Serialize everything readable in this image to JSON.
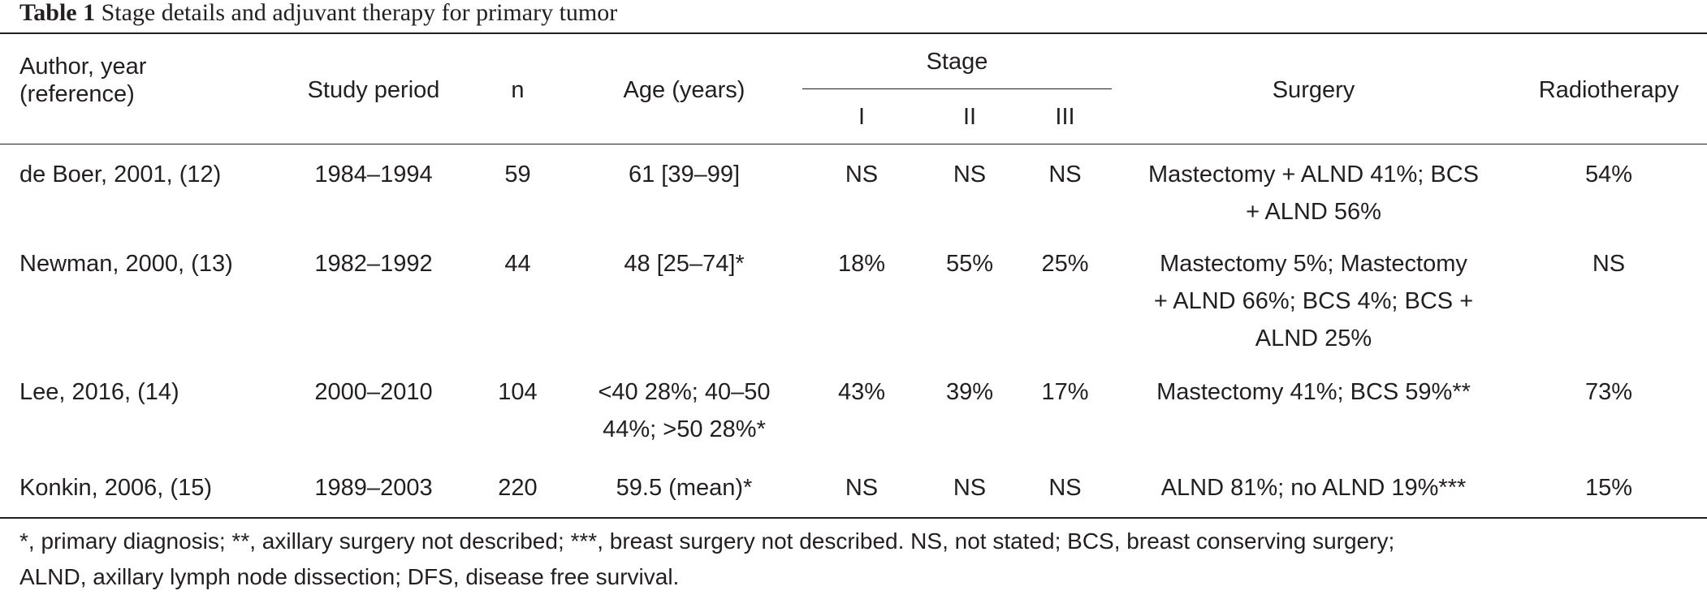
{
  "caption": {
    "label": "Table 1",
    "title": "Stage details and adjuvant therapy for primary tumor"
  },
  "header": {
    "author_line1": "Author, year",
    "author_line2": "(reference)",
    "study_period": "Study period",
    "n": "n",
    "age": "Age (years)",
    "stage": "Stage",
    "stage_1": "I",
    "stage_2": "II",
    "stage_3": "III",
    "surgery": "Surgery",
    "radiotherapy": "Radiotherapy"
  },
  "rows": [
    {
      "author": "de Boer, 2001, (12)",
      "period": "1984–1994",
      "n": "59",
      "age_lines": [
        "61 [39–99]"
      ],
      "s1": "NS",
      "s2": "NS",
      "s3": "NS",
      "surgery_lines": [
        "Mastectomy + ALND 41%; BCS",
        "+ ALND 56%"
      ],
      "radiotherapy": "54%"
    },
    {
      "author": "Newman, 2000, (13)",
      "period": "1982–1992",
      "n": "44",
      "age_lines": [
        "48 [25–74]*"
      ],
      "s1": "18%",
      "s2": "55%",
      "s3": "25%",
      "surgery_lines": [
        "Mastectomy 5%; Mastectomy",
        "+ ALND 66%; BCS 4%; BCS +",
        "ALND 25%"
      ],
      "radiotherapy": "NS"
    },
    {
      "author": "Lee, 2016, (14)",
      "period": "2000–2010",
      "n": "104",
      "age_lines": [
        "<40 28%; 40–50",
        "44%; >50 28%*"
      ],
      "s1": "43%",
      "s2": "39%",
      "s3": "17%",
      "surgery_lines": [
        "Mastectomy 41%; BCS 59%**"
      ],
      "radiotherapy": "73%"
    },
    {
      "author": "Konkin, 2006, (15)",
      "period": "1989–2003",
      "n": "220",
      "age_lines": [
        "59.5 (mean)*"
      ],
      "s1": "NS",
      "s2": "NS",
      "s3": "NS",
      "surgery_lines": [
        "ALND 81%; no ALND 19%***"
      ],
      "radiotherapy": "15%"
    }
  ],
  "footnote": {
    "line1": "*, primary diagnosis; **, axillary surgery not described; ***, breast surgery not described. NS, not stated; BCS, breast conserving surgery;",
    "line2": "ALND, axillary lymph node dissection; DFS, disease free survival."
  }
}
